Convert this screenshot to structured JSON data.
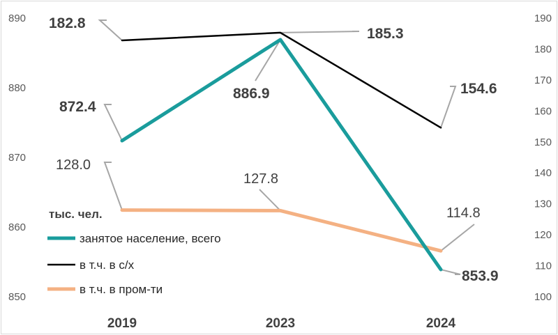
{
  "chart_data": {
    "type": "line",
    "categories": [
      "2019",
      "2023",
      "2024"
    ],
    "unit_label": "тыс. чел.",
    "y_left": {
      "ticks": [
        "850",
        "860",
        "870",
        "880",
        "890"
      ],
      "range": [
        850,
        890
      ]
    },
    "y_right": {
      "ticks": [
        "100",
        "110",
        "120",
        "130",
        "140",
        "150",
        "160",
        "170",
        "180",
        "190"
      ],
      "range": [
        100,
        190
      ]
    },
    "series": [
      {
        "name": "занятое население, всего",
        "axis": "left",
        "color": "#1a9c9c",
        "values": [
          872.4,
          886.9,
          853.9
        ],
        "labels": [
          "872.4",
          "886.9",
          "853.9"
        ]
      },
      {
        "name": "в т.ч. в с/х",
        "axis": "right",
        "color": "#000000",
        "values": [
          182.8,
          185.3,
          154.6
        ],
        "labels": [
          "182.8",
          "185.3",
          "154.6"
        ]
      },
      {
        "name": "в т.ч. в пром-ти",
        "axis": "right",
        "color": "#f4b183",
        "values": [
          128.0,
          127.8,
          114.8
        ],
        "labels": [
          "128.0",
          "127.8",
          "114.8"
        ]
      }
    ],
    "legend_position": "left, inside plot area"
  }
}
